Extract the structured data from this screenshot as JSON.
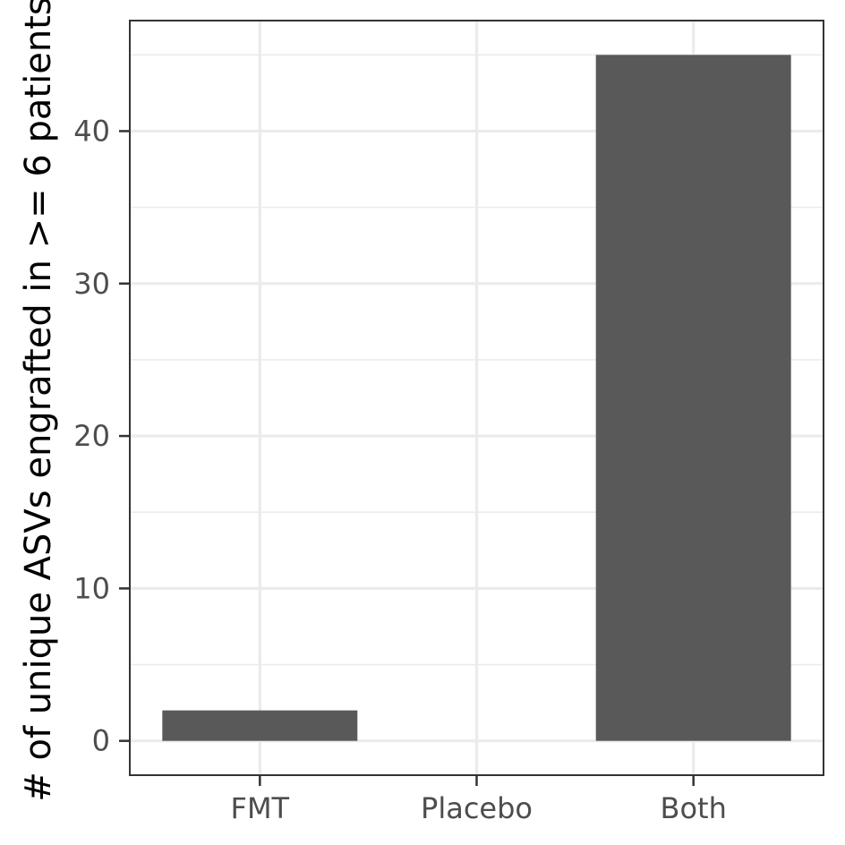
{
  "chart_data": {
    "type": "bar",
    "title": "",
    "xlabel": "",
    "ylabel": "# of unique ASVs engrafted in >= 6 patients",
    "categories": [
      "FMT",
      "Placebo",
      "Both"
    ],
    "values": [
      2,
      0,
      45
    ],
    "ylim": [
      -2.25,
      47.25
    ],
    "yticks": [
      0,
      10,
      20,
      30,
      40
    ],
    "ytick_labels": [
      "0",
      "10",
      "20",
      "30",
      "40"
    ],
    "grid": true,
    "theme": "bw",
    "colors": {
      "bar": "#595959",
      "grid": "#ebebeb",
      "panel_border": "#333333",
      "tick": "#333333"
    }
  }
}
